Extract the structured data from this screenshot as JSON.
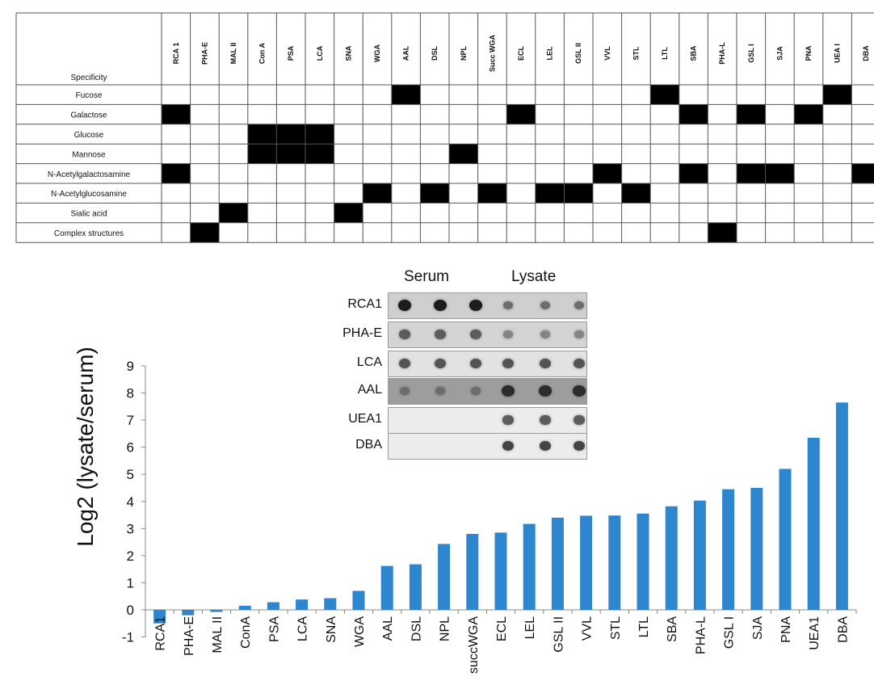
{
  "specificity_table": {
    "corner_label": "Specificity",
    "lectins": [
      "RCA 1",
      "PHA-E",
      "MAL II",
      "Con A",
      "PSA",
      "LCA",
      "SNA",
      "WGA",
      "AAL",
      "DSL",
      "NPL",
      "Succ WGA",
      "ECL",
      "LEL",
      "GSL II",
      "VVL",
      "STL",
      "LTL",
      "SBA",
      "PHA-L",
      "GSL I",
      "SJA",
      "PNA",
      "UEA I",
      "DBA"
    ],
    "rows": [
      {
        "label": "Fucose",
        "filled": [
          "AAL",
          "LTL",
          "UEA I"
        ]
      },
      {
        "label": "Galactose",
        "filled": [
          "RCA 1",
          "ECL",
          "SBA",
          "GSL I",
          "PNA"
        ]
      },
      {
        "label": "Glucose",
        "filled": [
          "Con A",
          "PSA",
          "LCA"
        ]
      },
      {
        "label": "Mannose",
        "filled": [
          "Con A",
          "PSA",
          "LCA",
          "NPL"
        ]
      },
      {
        "label": "N-Acetylgalactosamine",
        "filled": [
          "RCA 1",
          "VVL",
          "SBA",
          "GSL I",
          "SJA",
          "DBA"
        ]
      },
      {
        "label": "N-Acetylglucosamine",
        "filled": [
          "WGA",
          "DSL",
          "Succ WGA",
          "LEL",
          "GSL II",
          "STL"
        ]
      },
      {
        "label": "Sialic acid",
        "filled": [
          "MAL II",
          "SNA"
        ]
      },
      {
        "label": "Complex structures",
        "filled": [
          "PHA-E",
          "PHA-L"
        ]
      }
    ]
  },
  "chart_data": {
    "type": "bar",
    "title": "",
    "xlabel": "",
    "ylabel": "Log2 (lysate/serum)",
    "categories": [
      "RCA1",
      "PHA-E",
      "MAL II",
      "ConA",
      "PSA",
      "LCA",
      "SNA",
      "WGA",
      "AAL",
      "DSL",
      "NPL",
      "succWGA",
      "ECL",
      "LEL",
      "GSL II",
      "VVL",
      "STL",
      "LTL",
      "SBA",
      "PHA-L",
      "GSL I",
      "SJA",
      "PNA",
      "UEA1",
      "DBA"
    ],
    "values": [
      -0.5,
      -0.2,
      -0.08,
      0.15,
      0.28,
      0.38,
      0.43,
      0.7,
      1.62,
      1.68,
      2.43,
      2.8,
      2.85,
      3.17,
      3.4,
      3.47,
      3.48,
      3.55,
      3.82,
      4.03,
      4.45,
      4.5,
      5.2,
      6.35,
      7.65
    ],
    "ylim": [
      -1,
      9
    ],
    "yticks": [
      -1,
      0,
      1,
      2,
      3,
      4,
      5,
      6,
      7,
      8,
      9
    ],
    "bar_color": "#2e86cf",
    "grid": false
  },
  "blot_inset": {
    "headers": [
      "Serum",
      "Lysate"
    ],
    "rows": [
      {
        "label": "RCA1",
        "bg": "#cfcfcf",
        "serum": 0.95,
        "lysate": 0.45
      },
      {
        "label": "PHA-E",
        "bg": "#d4d4d4",
        "serum": 0.55,
        "lysate": 0.3
      },
      {
        "label": "LCA",
        "bg": "#e2e2e2",
        "serum": 0.6,
        "lysate": 0.6
      },
      {
        "label": "AAL",
        "bg": "#9d9d9d",
        "serum": 0.45,
        "lysate": 0.85
      },
      {
        "label": "UEA1",
        "bg": "#ececec",
        "serum": 0.0,
        "lysate": 0.55
      },
      {
        "label": "DBA",
        "bg": "#ececec",
        "serum": 0.0,
        "lysate": 0.7
      }
    ]
  }
}
